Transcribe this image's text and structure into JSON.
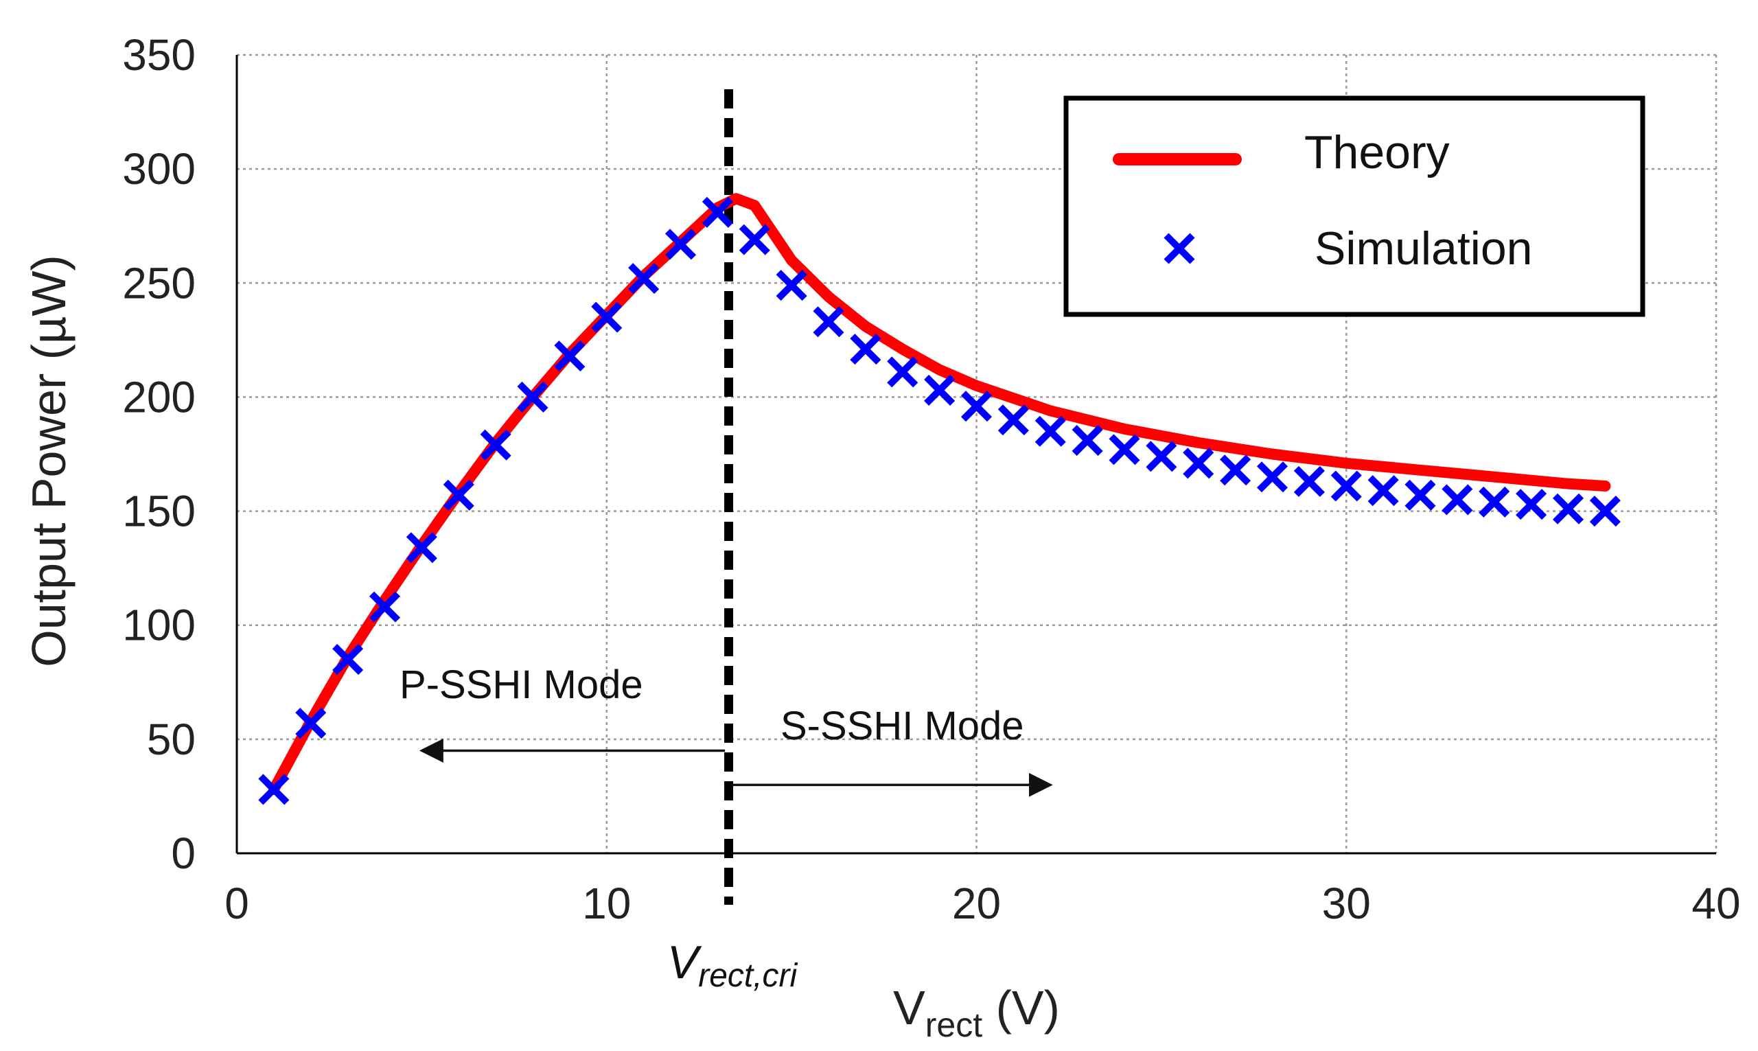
{
  "chart_data": {
    "type": "line",
    "title": "",
    "xlabel_main": "V",
    "xlabel_sub": "rect",
    "xlabel_unit": " (V)",
    "ylabel": "Output Power (µW)",
    "xlim": [
      0,
      40
    ],
    "ylim": [
      0,
      350
    ],
    "x_ticks": [
      0,
      10,
      20,
      30,
      40
    ],
    "y_ticks": [
      0,
      50,
      100,
      150,
      200,
      250,
      300,
      350
    ],
    "grid": true,
    "legend_position": "top-right",
    "series": [
      {
        "name": "Theory",
        "style": "line",
        "color": "#ff0000",
        "x": [
          1,
          2,
          3,
          4,
          5,
          6,
          7,
          8,
          9,
          10,
          11,
          12,
          13,
          13.5,
          14,
          14.5,
          15,
          16,
          17,
          18,
          19,
          20,
          22,
          24,
          26,
          28,
          30,
          32,
          34,
          36,
          37
        ],
        "y": [
          28,
          58,
          86,
          111,
          135,
          158,
          180,
          200,
          219,
          236,
          253,
          268,
          283,
          287,
          284,
          272,
          260,
          244,
          231,
          221,
          212,
          205,
          194,
          186,
          180,
          175,
          171,
          168,
          165,
          162,
          161
        ]
      },
      {
        "name": "Simulation",
        "style": "marker-x",
        "color": "#0000ff",
        "x": [
          1,
          2,
          3,
          4,
          5,
          6,
          7,
          8,
          9,
          10,
          11,
          12,
          13,
          14,
          15,
          16,
          17,
          18,
          19,
          20,
          21,
          22,
          23,
          24,
          25,
          26,
          27,
          28,
          29,
          30,
          31,
          32,
          33,
          34,
          35,
          36,
          37
        ],
        "y": [
          28,
          57,
          85,
          108,
          134,
          157,
          179,
          200,
          218,
          235,
          252,
          267,
          281,
          269,
          249,
          233,
          221,
          211,
          203,
          196,
          190,
          185,
          181,
          177,
          174,
          171,
          168,
          165,
          163,
          161,
          159,
          157,
          155,
          154,
          153,
          151,
          150
        ]
      }
    ],
    "annotations": {
      "critical_x": 13.3,
      "critical_label_main": "V",
      "critical_label_sub": "rect,cri",
      "left_mode": {
        "label": "P-SSHI Mode",
        "arrow_from_x": 13.2,
        "arrow_to_x": 5,
        "arrow_y": 45
      },
      "right_mode": {
        "label": "S-SSHI Mode",
        "arrow_from_x": 13.3,
        "arrow_to_x": 22,
        "arrow_y": 30
      }
    }
  }
}
